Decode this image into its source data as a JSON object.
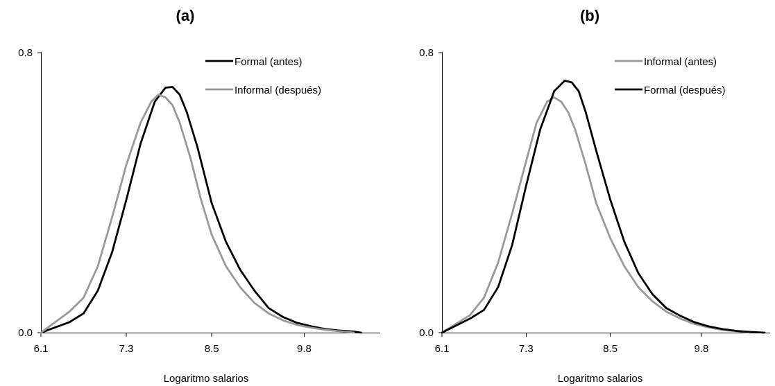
{
  "chart_data": [
    {
      "type": "line",
      "title": "(a)",
      "xlabel": "Logaritmo salarios",
      "ylabel": "",
      "xlim": [
        6.1,
        10.8
      ],
      "ylim": [
        0.0,
        0.8
      ],
      "xticks": [
        "6.1",
        "7.3",
        "8.5",
        "9.8"
      ],
      "xtick_values": [
        6.1,
        7.3,
        8.5,
        9.8
      ],
      "yticks": [
        "0.8",
        "0.0"
      ],
      "ytick_values": [
        0.8,
        0.0
      ],
      "grid": false,
      "legend_position": "top-right",
      "series": [
        {
          "name": "Formal (antes)",
          "color": "#000000",
          "x": [
            6.1,
            6.3,
            6.5,
            6.7,
            6.9,
            7.1,
            7.3,
            7.5,
            7.7,
            7.85,
            7.95,
            8.05,
            8.15,
            8.3,
            8.5,
            8.7,
            8.9,
            9.1,
            9.3,
            9.5,
            9.7,
            9.9,
            10.1,
            10.3,
            10.5,
            10.6
          ],
          "y": [
            0.0,
            0.015,
            0.03,
            0.055,
            0.12,
            0.23,
            0.38,
            0.54,
            0.66,
            0.7,
            0.702,
            0.68,
            0.63,
            0.53,
            0.37,
            0.26,
            0.18,
            0.12,
            0.07,
            0.045,
            0.028,
            0.018,
            0.01,
            0.006,
            0.003,
            0.0
          ]
        },
        {
          "name": "Informal (después)",
          "color": "#999999",
          "x": [
            6.1,
            6.3,
            6.5,
            6.7,
            6.9,
            7.1,
            7.3,
            7.5,
            7.65,
            7.75,
            7.85,
            7.95,
            8.05,
            8.2,
            8.35,
            8.5,
            8.7,
            8.9,
            9.1,
            9.3,
            9.5,
            9.7,
            9.9,
            10.1,
            10.3,
            10.5
          ],
          "y": [
            0.0,
            0.03,
            0.06,
            0.1,
            0.19,
            0.33,
            0.48,
            0.6,
            0.66,
            0.68,
            0.672,
            0.65,
            0.6,
            0.5,
            0.38,
            0.28,
            0.19,
            0.13,
            0.085,
            0.055,
            0.035,
            0.022,
            0.014,
            0.008,
            0.004,
            0.0
          ]
        }
      ]
    },
    {
      "type": "line",
      "title": "(b)",
      "xlabel": "Logaritmo salarios",
      "ylabel": "",
      "xlim": [
        6.1,
        10.8
      ],
      "ylim": [
        0.0,
        0.8
      ],
      "xticks": [
        "6.1",
        "7.3",
        "8.5",
        "9.8"
      ],
      "xtick_values": [
        6.1,
        7.3,
        8.5,
        9.8
      ],
      "yticks": [
        "0.8",
        "0.0"
      ],
      "ytick_values": [
        0.8,
        0.0
      ],
      "grid": false,
      "legend_position": "top-right",
      "series": [
        {
          "name": "Informal (antes)",
          "color": "#999999",
          "x": [
            6.1,
            6.3,
            6.5,
            6.7,
            6.9,
            7.1,
            7.3,
            7.45,
            7.6,
            7.7,
            7.8,
            7.9,
            8.0,
            8.15,
            8.3,
            8.5,
            8.7,
            8.9,
            9.1,
            9.3,
            9.5,
            9.7,
            9.9,
            10.1,
            10.3,
            10.5
          ],
          "y": [
            0.0,
            0.025,
            0.05,
            0.1,
            0.2,
            0.34,
            0.49,
            0.6,
            0.66,
            0.672,
            0.66,
            0.63,
            0.58,
            0.48,
            0.37,
            0.27,
            0.19,
            0.13,
            0.09,
            0.06,
            0.04,
            0.025,
            0.015,
            0.008,
            0.004,
            0.0
          ]
        },
        {
          "name": "Formal (después)",
          "color": "#000000",
          "x": [
            6.1,
            6.3,
            6.5,
            6.7,
            6.9,
            7.1,
            7.3,
            7.5,
            7.7,
            7.85,
            7.95,
            8.05,
            8.15,
            8.3,
            8.5,
            8.7,
            8.9,
            9.1,
            9.3,
            9.5,
            9.7,
            9.9,
            10.1,
            10.3,
            10.5,
            10.7
          ],
          "y": [
            0.0,
            0.02,
            0.04,
            0.065,
            0.13,
            0.25,
            0.42,
            0.58,
            0.69,
            0.72,
            0.715,
            0.69,
            0.63,
            0.52,
            0.38,
            0.26,
            0.17,
            0.11,
            0.07,
            0.048,
            0.03,
            0.018,
            0.01,
            0.005,
            0.002,
            0.0
          ]
        }
      ]
    }
  ]
}
